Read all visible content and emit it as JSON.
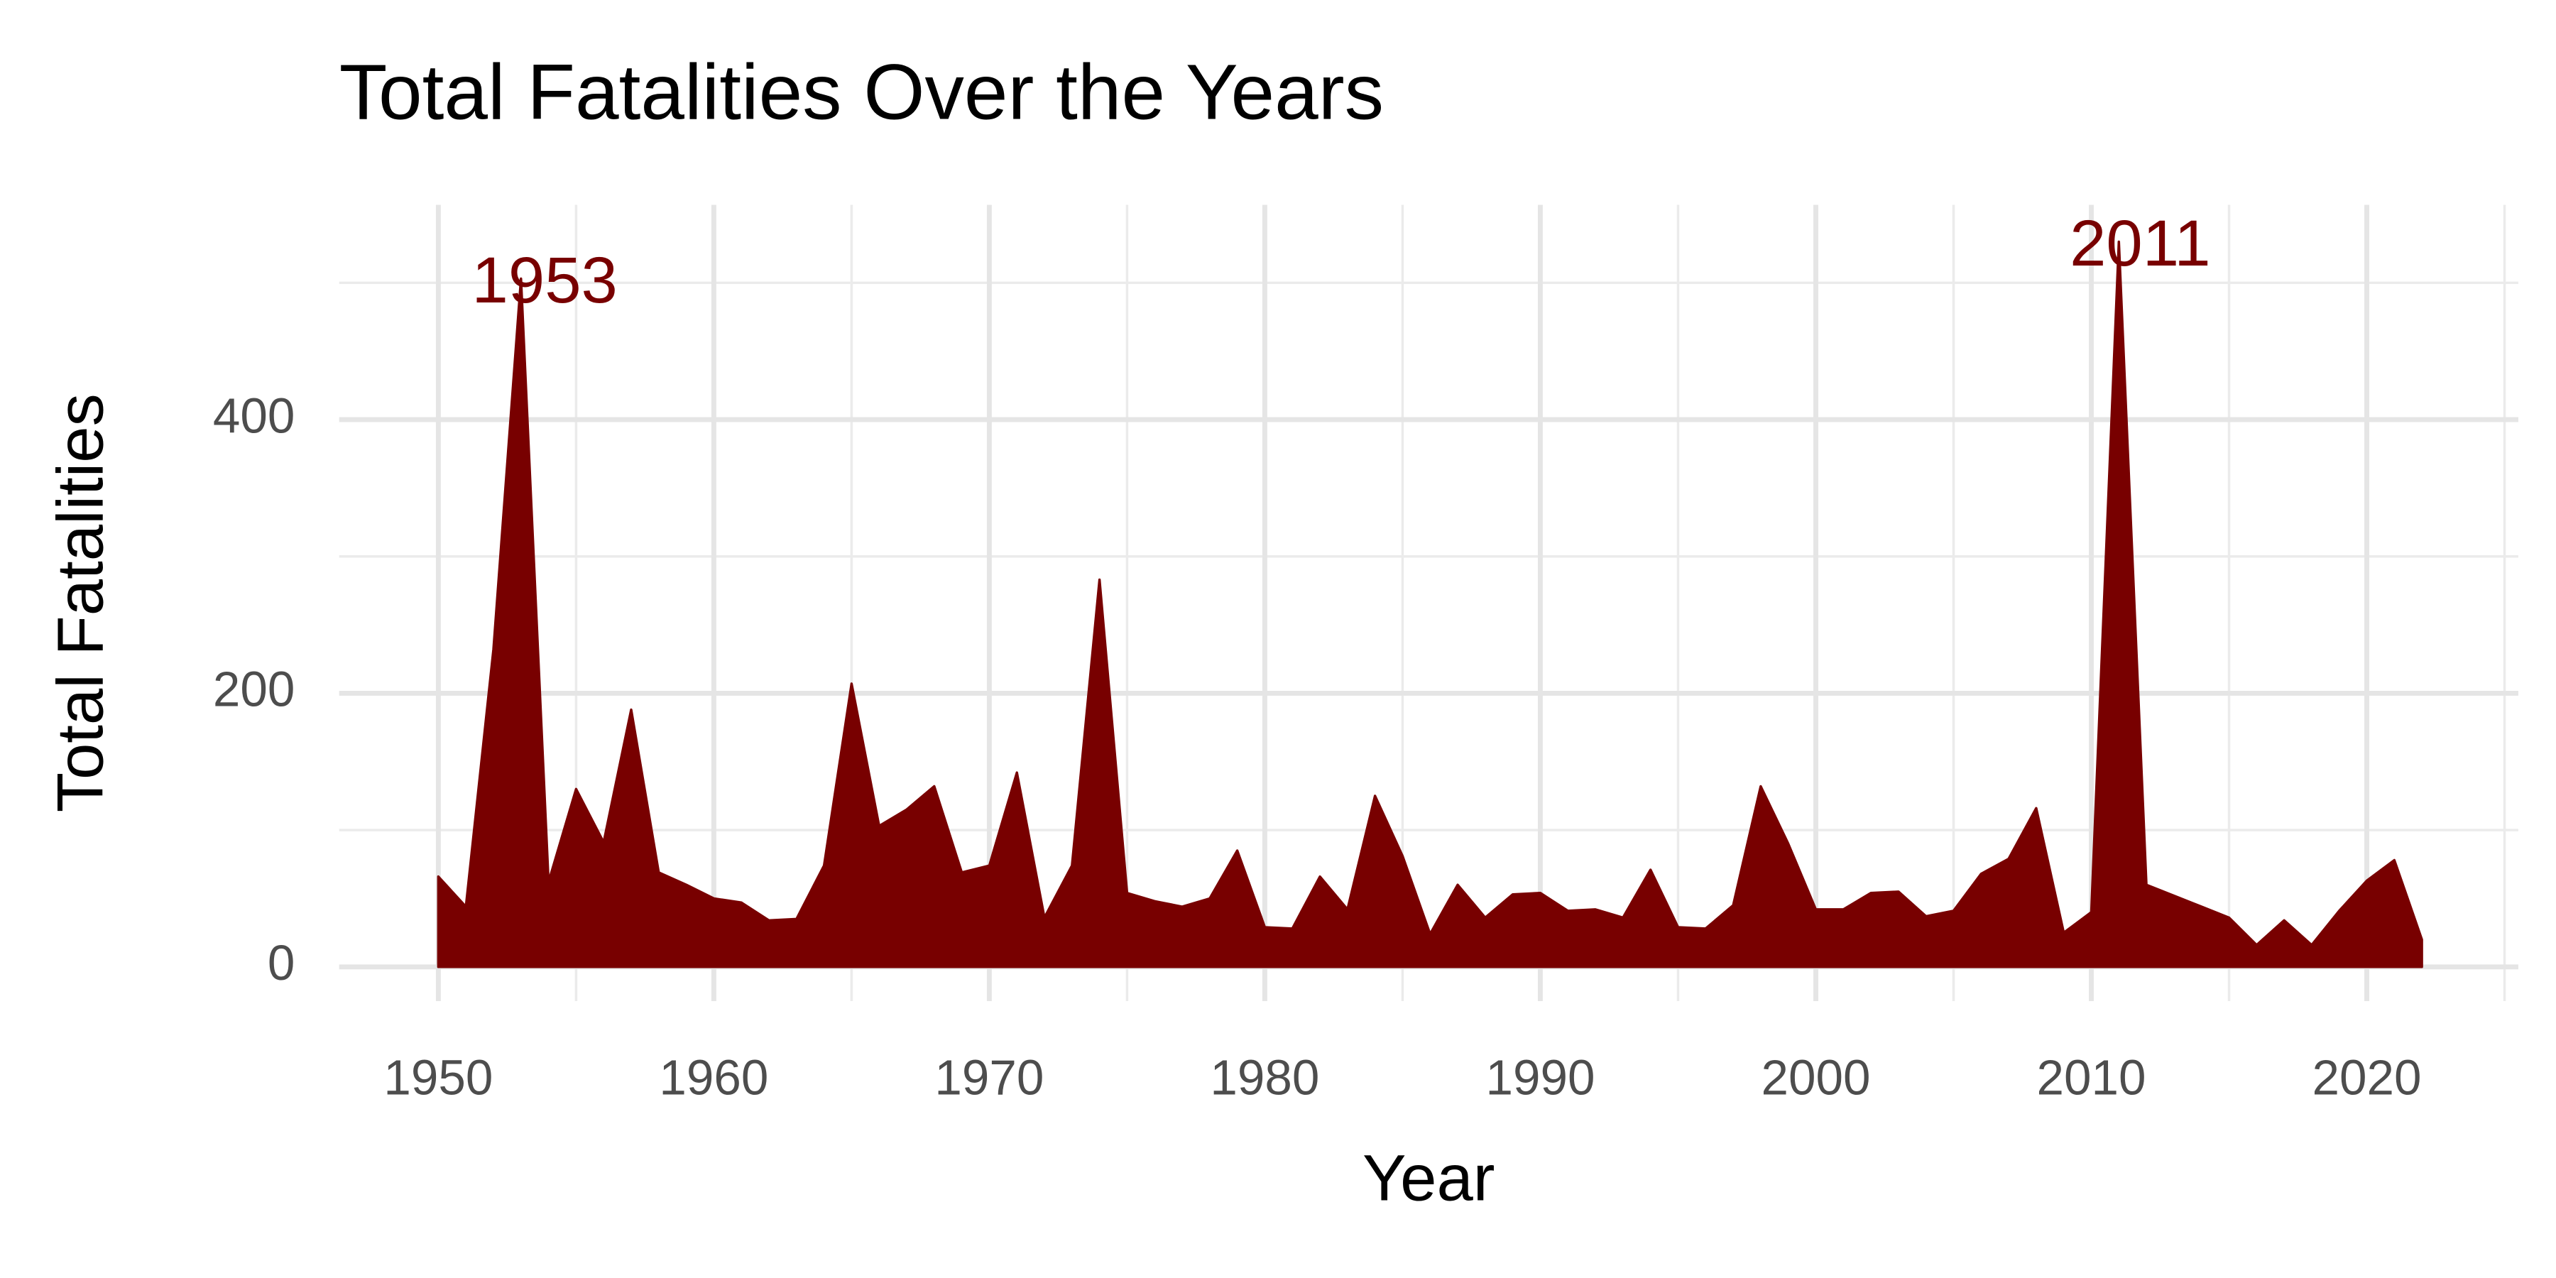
{
  "chart_data": {
    "type": "area",
    "title": "Total Fatalities Over the Years",
    "x_label": "Year",
    "y_label": "Total Fatalities",
    "color": "#780000",
    "x": [
      1950,
      1951,
      1952,
      1953,
      1954,
      1955,
      1956,
      1957,
      1958,
      1959,
      1960,
      1961,
      1962,
      1963,
      1964,
      1965,
      1966,
      1967,
      1968,
      1969,
      1970,
      1971,
      1972,
      1973,
      1974,
      1975,
      1976,
      1977,
      1978,
      1979,
      1980,
      1981,
      1982,
      1983,
      1984,
      1985,
      1986,
      1987,
      1988,
      1989,
      1990,
      1991,
      1992,
      1993,
      1994,
      1995,
      1996,
      1997,
      1998,
      1999,
      2000,
      2001,
      2002,
      2003,
      2004,
      2005,
      2006,
      2007,
      2008,
      2009,
      2010,
      2011,
      2012,
      2013,
      2014,
      2015,
      2016,
      2017,
      2018,
      2019,
      2020,
      2021,
      2022
    ],
    "values": [
      66,
      44,
      232,
      503,
      62,
      130,
      91,
      188,
      69,
      60,
      50,
      47,
      34,
      35,
      74,
      207,
      103,
      115,
      132,
      69,
      74,
      142,
      36,
      74,
      283,
      54,
      48,
      44,
      50,
      85,
      29,
      28,
      66,
      42,
      125,
      81,
      24,
      60,
      36,
      53,
      54,
      41,
      42,
      36,
      71,
      29,
      28,
      45,
      132,
      90,
      42,
      42,
      54,
      55,
      37,
      41,
      68,
      79,
      116,
      25,
      40,
      530,
      60,
      52,
      44,
      36,
      16,
      34,
      16,
      41,
      63,
      78,
      20
    ],
    "xlim": [
      1946.4,
      2025.5
    ],
    "ylim": [
      -25,
      557
    ],
    "xticks": [
      1950,
      1960,
      1970,
      1980,
      1990,
      2000,
      2010,
      2020
    ],
    "yticks": [
      0,
      200,
      400
    ],
    "grid": true,
    "annotations": [
      {
        "label": "1953",
        "x": 1953,
        "y": 503
      },
      {
        "label": "2011",
        "x": 2011,
        "y": 530
      }
    ]
  }
}
